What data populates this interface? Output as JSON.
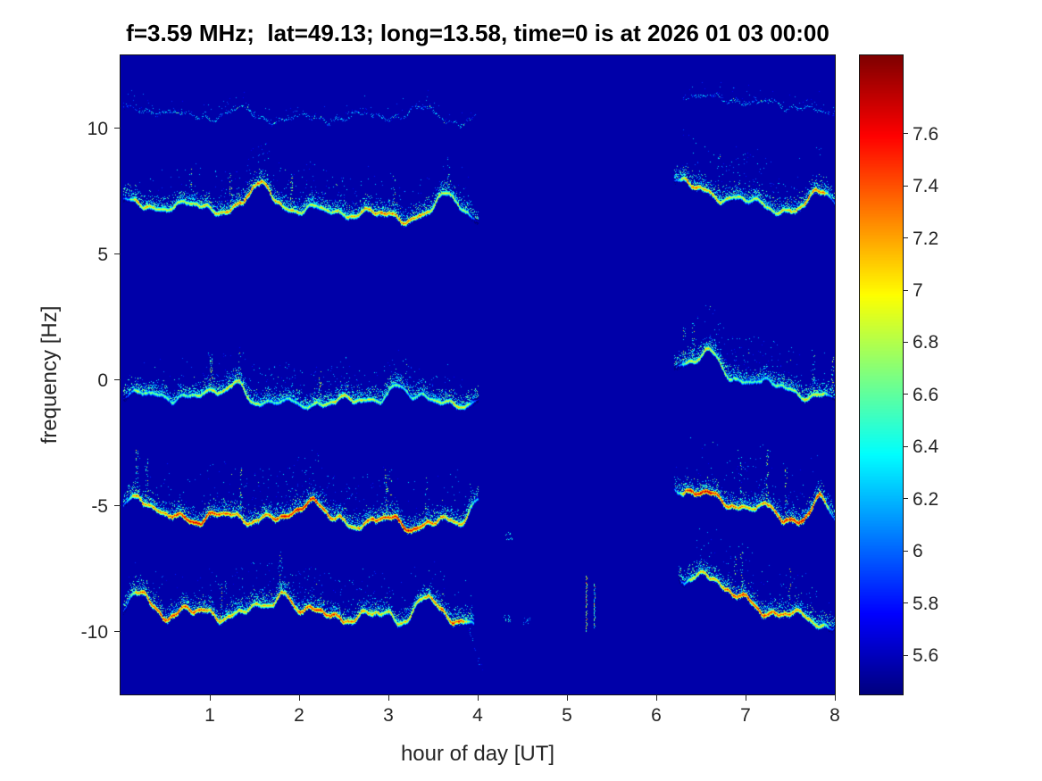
{
  "chart_data": {
    "type": "heatmap",
    "subtype": "doppler-spectrogram",
    "title": "f=3.59 MHz;  lat=49.13; long=13.58, time=0 is at 2026 01 03 00:00",
    "xlabel": "hour of day [UT]",
    "ylabel": "frequency [Hz]",
    "xlim": [
      0,
      8
    ],
    "ylim": [
      -12.5,
      12.9
    ],
    "grid": false,
    "x_ticks": {
      "values": [
        1,
        2,
        3,
        4,
        5,
        6,
        7,
        8
      ],
      "labels": [
        "1",
        "2",
        "3",
        "4",
        "5",
        "6",
        "7",
        "8"
      ]
    },
    "y_ticks": {
      "values": [
        -10,
        -5,
        0,
        5,
        10
      ],
      "labels": [
        "-10",
        "-5",
        "0",
        "5",
        "10"
      ]
    },
    "colorbar": {
      "colormap": "jet",
      "position": "right",
      "clim": [
        5.45,
        7.9
      ],
      "ticks": {
        "values": [
          5.6,
          5.8,
          6,
          6.2,
          6.4,
          6.6,
          6.8,
          7,
          7.2,
          7.4,
          7.6
        ],
        "labels": [
          "5.6",
          "5.8",
          "6",
          "6.2",
          "6.4",
          "6.6",
          "6.8",
          "7",
          "7.2",
          "7.4",
          "7.6"
        ]
      }
    },
    "background_value": 5.55,
    "data_gap_hours": [
      [
        4.05,
        6.2
      ]
    ],
    "bands": [
      {
        "name": "trace-10.7Hz",
        "seed": 101,
        "amp": 0.22,
        "bump": 0.3,
        "peak": 6.35,
        "speckle": 0.7,
        "thin": true,
        "segments": [
          {
            "x0": 0.03,
            "x1": 3.97,
            "f0": 10.75,
            "f1": 10.4
          },
          {
            "x0": 6.3,
            "x1": 8.0,
            "f0": 11.35,
            "f1": 10.45
          }
        ]
      },
      {
        "name": "trace-7Hz",
        "seed": 202,
        "amp": 0.28,
        "bump": 0.85,
        "peak": 7.35,
        "speckle": 1.5,
        "segments": [
          {
            "x0": 0.03,
            "x1": 4.0,
            "f0": 7.0,
            "f1": 6.65
          },
          {
            "x0": 6.2,
            "x1": 8.0,
            "f0": 7.85,
            "f1": 6.6,
            "speckle": 1.9
          }
        ]
      },
      {
        "name": "trace-0Hz",
        "seed": 303,
        "amp": 0.28,
        "bump": 0.75,
        "peak": 7.05,
        "speckle": 1.3,
        "segments": [
          {
            "x0": 0.03,
            "x1": 4.0,
            "f0": -0.65,
            "f1": -1.05
          },
          {
            "x0": 6.2,
            "x1": 8.0,
            "f0": 0.6,
            "f1": -0.95,
            "speckle": 1.6
          }
        ]
      },
      {
        "name": "trace-minus5.5Hz",
        "seed": 404,
        "amp": 0.33,
        "bump": 1.0,
        "peak": 7.65,
        "speckle": 1.9,
        "segments": [
          {
            "x0": 0.03,
            "x1": 4.0,
            "f0": -5.55,
            "f1": -5.95
          },
          {
            "x0": 6.2,
            "x1": 8.0,
            "f0": -4.3,
            "f1": -5.95,
            "speckle": 2.2
          }
        ]
      },
      {
        "name": "trace-minus9.5Hz",
        "seed": 505,
        "amp": 0.33,
        "bump": 0.85,
        "peak": 7.5,
        "speckle": 1.5,
        "segments": [
          {
            "x0": 0.03,
            "x1": 3.95,
            "f0": -9.3,
            "f1": -9.6
          },
          {
            "x0": 3.9,
            "x1": 4.05,
            "f0": -9.9,
            "f1": -11.5,
            "thin": true,
            "peak": 6.5,
            "speckle": 0.2
          },
          {
            "x0": 6.25,
            "x1": 8.0,
            "f0": -8.0,
            "f1": -9.6,
            "speckle": 1.8
          }
        ]
      }
    ],
    "extras": [
      {
        "type": "streak",
        "x": 5.21,
        "f0": -7.8,
        "f1": -10.0,
        "value": 6.7
      },
      {
        "type": "streak",
        "x": 5.3,
        "f0": -8.1,
        "f1": -9.9,
        "value": 6.4
      },
      {
        "type": "blob",
        "x": 4.35,
        "f": -6.2,
        "value": 6.3
      },
      {
        "type": "blob",
        "x": 4.33,
        "f": -9.5,
        "value": 6.3
      },
      {
        "type": "blob",
        "x": 4.55,
        "f": -9.6,
        "value": 6.1
      }
    ]
  }
}
